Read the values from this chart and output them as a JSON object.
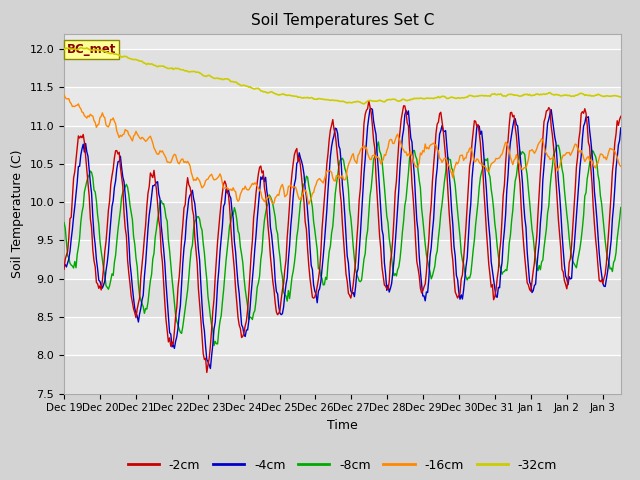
{
  "title": "Soil Temperatures Set C",
  "xlabel": "Time",
  "ylabel": "Soil Temperature (C)",
  "ylim": [
    7.5,
    12.2
  ],
  "legend_labels": [
    "-2cm",
    "-4cm",
    "-8cm",
    "-16cm",
    "-32cm"
  ],
  "legend_colors": [
    "#cc0000",
    "#0000cc",
    "#00aa00",
    "#ff8800",
    "#cccc00"
  ],
  "annotation_text": "BC_met",
  "annotation_color": "#880000",
  "annotation_bg": "#ffff99",
  "background_color": "#d3d3d3",
  "plot_bg": "#e8e8e8",
  "xtick_labels": [
    "Dec 19",
    "Dec 20",
    "Dec 21",
    "Dec 22",
    "Dec 23",
    "Dec 24",
    "Dec 25",
    "Dec 26",
    "Dec 27",
    "Dec 28",
    "Dec 29",
    "Dec 30",
    "Dec 31",
    "Jan 1",
    "Jan 2",
    "Jan 3"
  ],
  "ytick_vals": [
    7.5,
    8.0,
    8.5,
    9.0,
    9.5,
    10.0,
    10.5,
    11.0,
    11.5,
    12.0
  ]
}
